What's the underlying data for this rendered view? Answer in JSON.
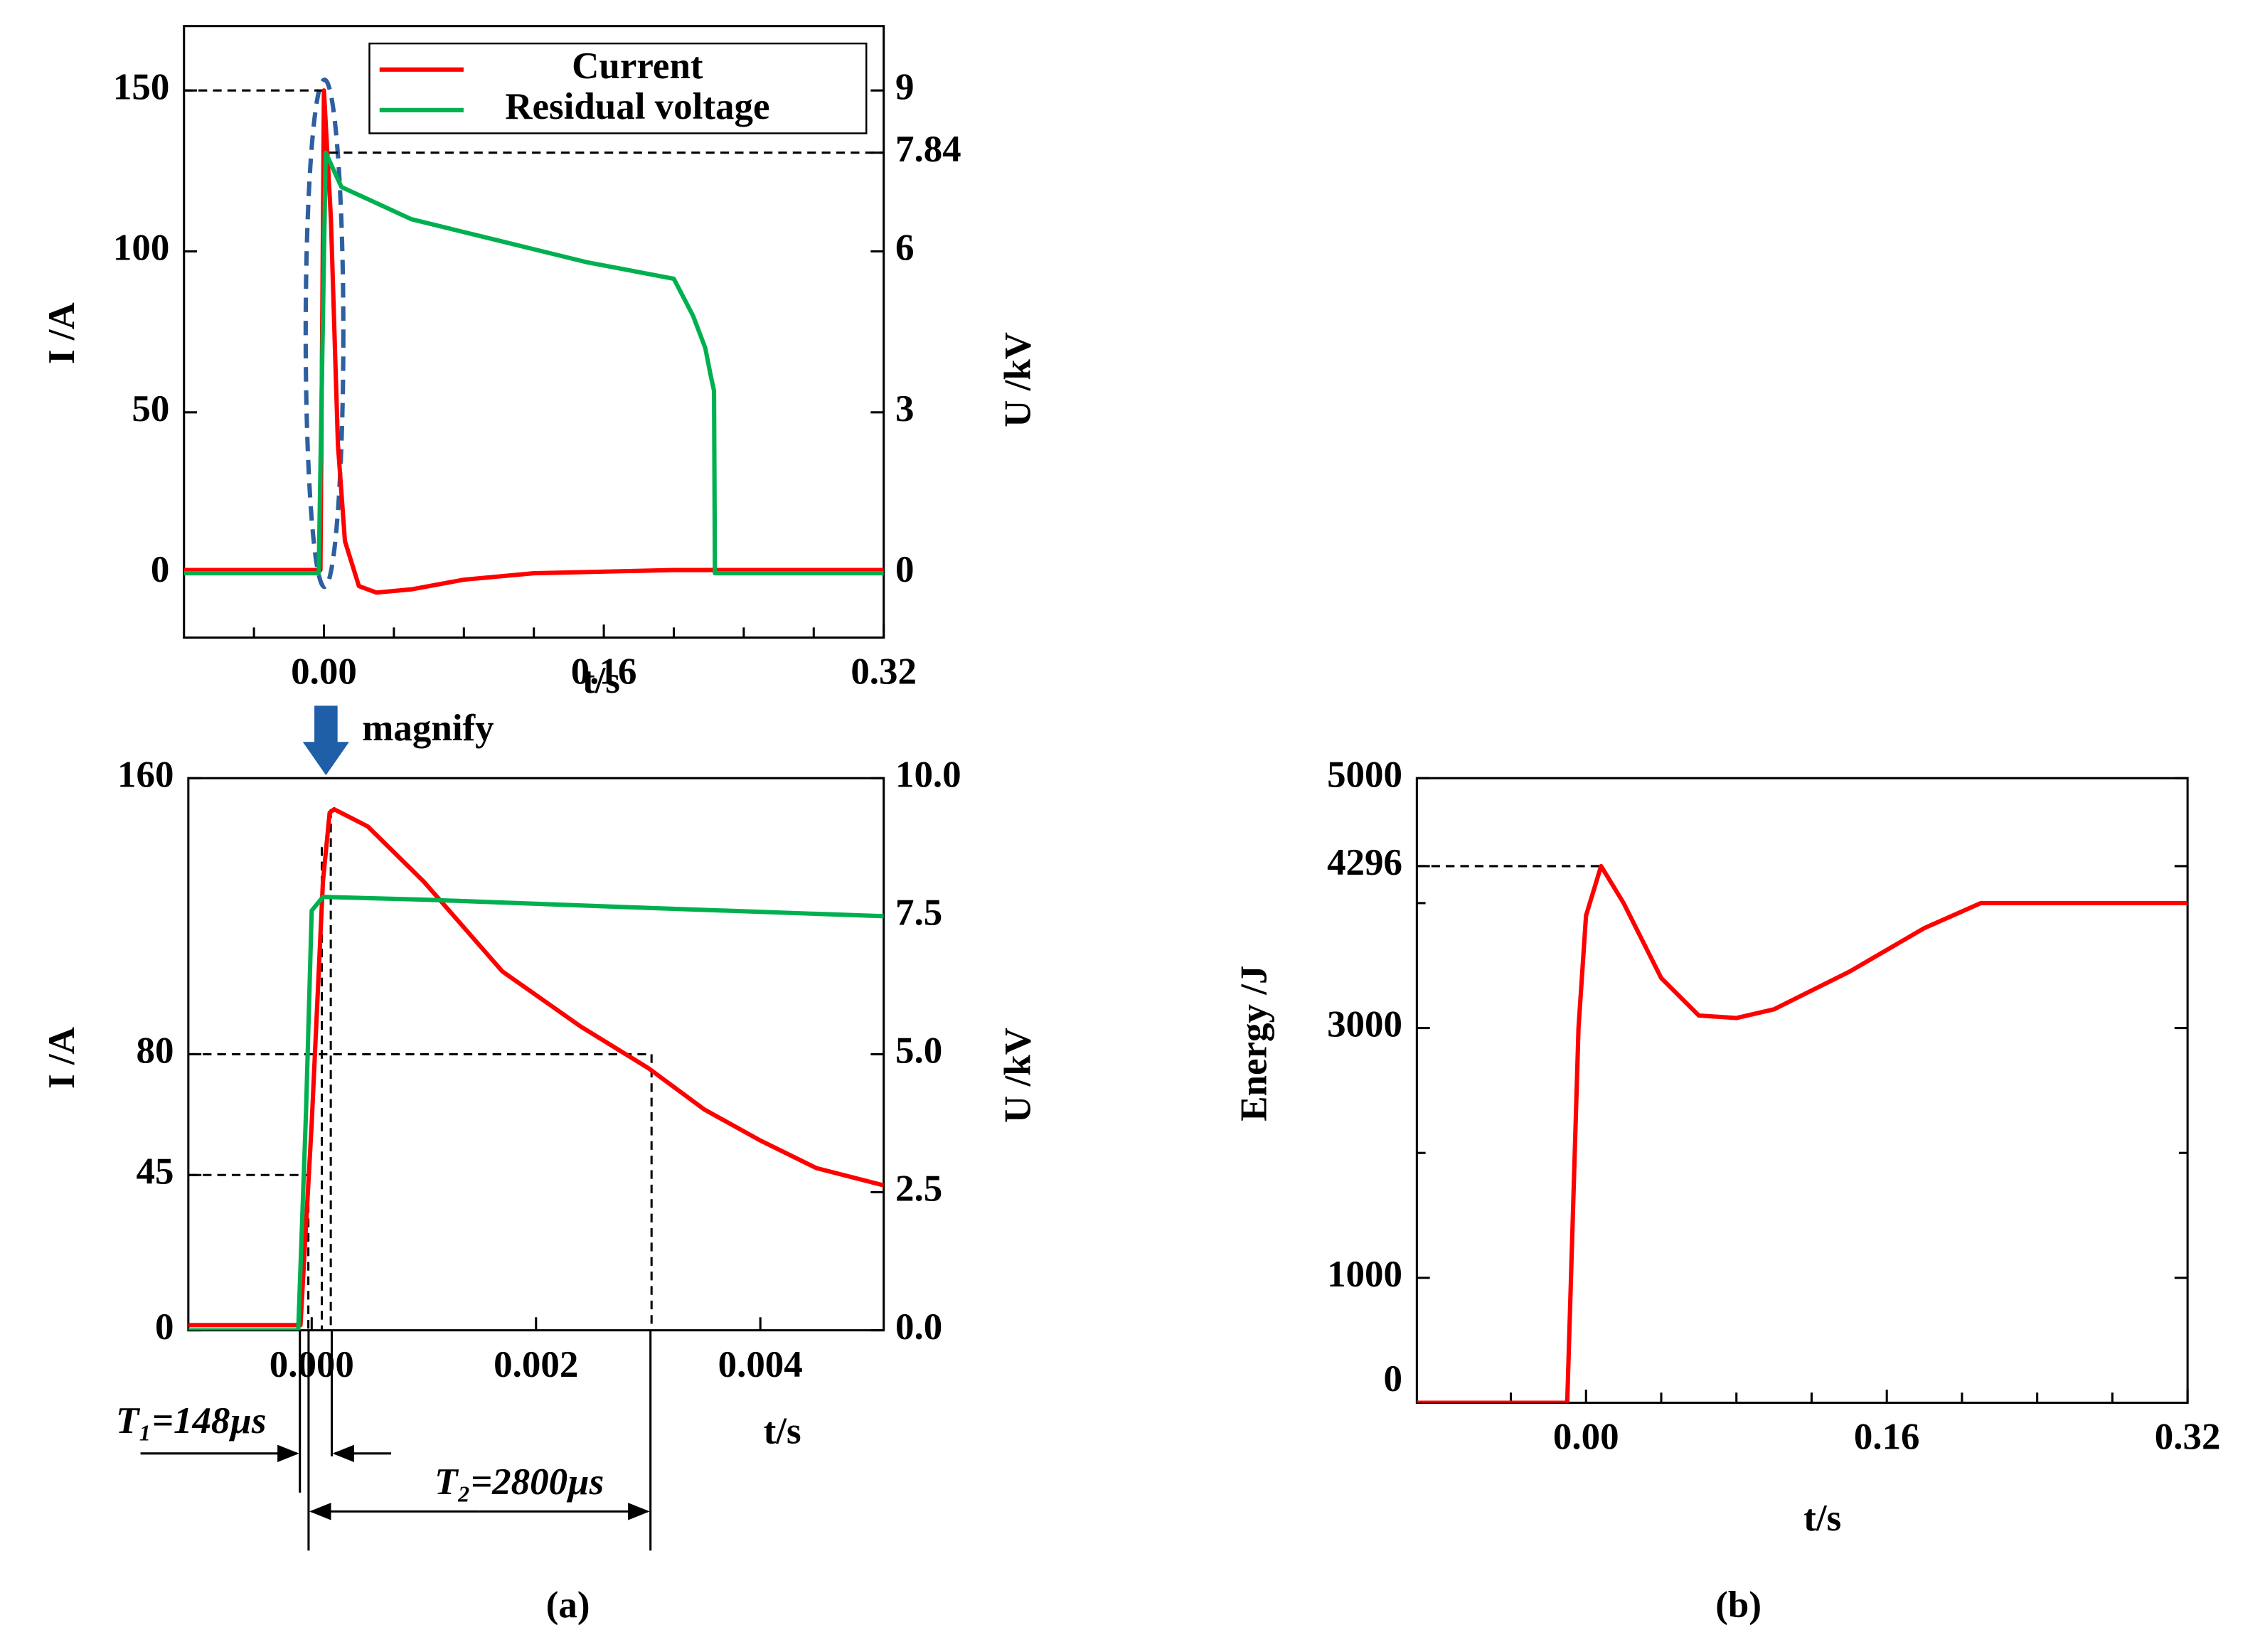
{
  "chart_data": [
    {
      "type": "line",
      "xlabel": "t/s",
      "ylabel": "I /A",
      "y2label": "U /kV",
      "xlim": [
        -0.08,
        0.32
      ],
      "xticks": [
        {
          "value": 0,
          "label": "0.00"
        },
        {
          "value": 0.16,
          "label": "0.16"
        },
        {
          "value": 0.32,
          "label": "0.32"
        }
      ],
      "xminorticks": [
        -0.04,
        0.04,
        0.08,
        0.12,
        0.2,
        0.24,
        0.28
      ],
      "ylim": [
        -20,
        170
      ],
      "yticks": [
        0,
        50,
        100,
        150
      ],
      "y2lim": [
        -1.2,
        10.2
      ],
      "y2ticks": [
        0,
        3,
        6,
        7.84,
        9
      ],
      "legend": "upper right",
      "hguides": [
        {
          "axis": "y",
          "value": 150,
          "from": -0.08,
          "to": 0.0
        },
        {
          "axis": "y2",
          "value": 7.84,
          "from": 0.003,
          "to": 0.32
        }
      ],
      "series": [
        {
          "name": "Current",
          "color": "#ff0000",
          "axis": "y",
          "x": [
            -0.08,
            -0.002,
            0.0,
            0.004,
            0.008,
            0.012,
            0.02,
            0.03,
            0.05,
            0.08,
            0.12,
            0.2,
            0.32
          ],
          "values": [
            1,
            1,
            150,
            110,
            40,
            10,
            -4,
            -6,
            -5,
            -2,
            0,
            1,
            1
          ]
        },
        {
          "name": "Residual voltage",
          "color": "#00b050",
          "axis": "y2",
          "x": [
            -0.08,
            -0.003,
            0.001,
            0.01,
            0.05,
            0.1,
            0.15,
            0.2,
            0.211,
            0.218,
            0.221,
            0.223,
            0.2235,
            0.32
          ],
          "values": [
            0,
            0,
            7.84,
            7.2,
            6.6,
            6.2,
            5.8,
            5.49,
            4.8,
            4.2,
            3.7,
            3.4,
            0,
            0
          ]
        }
      ]
    },
    {
      "type": "line",
      "xlabel": "t/s",
      "ylabel": "I /A",
      "y2label": "U /kV",
      "xlim": [
        -0.0011,
        0.0051
      ],
      "xticks": [
        {
          "value": 0,
          "label": "0.000"
        },
        {
          "value": 0.002,
          "label": "0.002"
        },
        {
          "value": 0.004,
          "label": "0.004"
        }
      ],
      "ylim": [
        0,
        160
      ],
      "yticks": [
        0,
        45,
        80,
        160
      ],
      "y2lim": [
        0,
        10
      ],
      "y2ticks": [
        {
          "value": 0,
          "label": "0.0"
        },
        {
          "value": 2.5,
          "label": "2.5"
        },
        {
          "value": 5,
          "label": "5.0"
        },
        {
          "value": 7.5,
          "label": "7.5"
        },
        {
          "value": 10,
          "label": "10.0"
        }
      ],
      "hguides": [
        {
          "axis": "y",
          "value": 80,
          "from": -0.0011,
          "to": 0.00303
        },
        {
          "axis": "y",
          "value": 45,
          "from": -0.0011,
          "to": -3e-05
        }
      ],
      "vguides": [
        {
          "value": 0.00303,
          "to": 80
        },
        {
          "value": -3e-05,
          "to": 45
        },
        {
          "value": 9e-05,
          "to": 140
        },
        {
          "value": 0.00017,
          "to": 151
        }
      ],
      "annotations": [
        "magnify",
        "T₁=148µs",
        "T₂=2800µs"
      ],
      "series": [
        {
          "color": "#ff0000",
          "axis": "y",
          "x": [
            -0.0011,
            -0.0001,
            0.0,
            0.0001,
            0.00016,
            0.0002,
            0.0005,
            0.001,
            0.0017,
            0.0024,
            0.003,
            0.0035,
            0.004,
            0.0045,
            0.0051
          ],
          "values": [
            1.5,
            1.5,
            60,
            130,
            150,
            151,
            146,
            130,
            104,
            88,
            76,
            64,
            55,
            47,
            42
          ]
        },
        {
          "color": "#00b050",
          "axis": "y2",
          "x": [
            -0.0011,
            -0.00012,
            -5e-05,
            0.0,
            0.0001,
            0.001,
            0.003,
            0.0051
          ],
          "values": [
            0,
            0,
            4,
            7.6,
            7.85,
            7.8,
            7.65,
            7.5
          ]
        }
      ]
    },
    {
      "type": "line",
      "xlabel": "t/s",
      "ylabel": "Energy /J",
      "mirror": true,
      "xlim": [
        -0.09,
        0.32
      ],
      "xticks": [
        {
          "value": 0,
          "label": "0.00"
        },
        {
          "value": 0.16,
          "label": "0.16"
        },
        {
          "value": 0.32,
          "label": "0.32"
        }
      ],
      "xminorticks": [
        -0.04,
        0.04,
        0.08,
        0.12,
        0.2,
        0.24,
        0.28
      ],
      "ylim": [
        0,
        5000
      ],
      "yticks": [
        0,
        1000,
        3000,
        4296,
        5000
      ],
      "yminorticks": [
        2000,
        4000
      ],
      "hguides": [
        {
          "axis": "y",
          "value": 4296,
          "from": -0.09,
          "to": 0.008
        }
      ],
      "series": [
        {
          "color": "#ff0000",
          "axis": "y",
          "x": [
            -0.09,
            -0.01,
            -0.008,
            -0.004,
            0.0,
            0.008,
            0.02,
            0.04,
            0.06,
            0.08,
            0.1,
            0.14,
            0.18,
            0.21,
            0.32
          ],
          "values": [
            0,
            0,
            1000,
            3000,
            3900,
            4296,
            4000,
            3400,
            3100,
            3080,
            3150,
            3450,
            3800,
            4000,
            4000
          ]
        }
      ]
    }
  ],
  "panel_labels": [
    "(a)",
    "(b)"
  ]
}
